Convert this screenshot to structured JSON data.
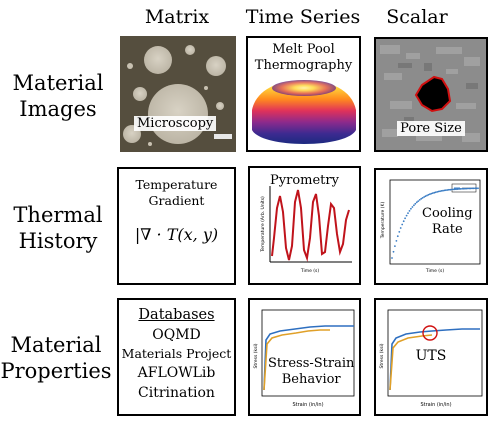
{
  "columns": [
    "Matrix",
    "Time Series",
    "Scalar"
  ],
  "rows": [
    {
      "line1": "Material",
      "line2": "Images"
    },
    {
      "line1": "Thermal",
      "line2": "History"
    },
    {
      "line1": "Material",
      "line2": "Properties"
    }
  ],
  "images": {
    "microscopy_label": "Microscopy",
    "thermography_line1": "Melt Pool",
    "thermography_line2": "Thermography",
    "pore_label": "Pore Size"
  },
  "thermal": {
    "gradient_line1": "Temperature",
    "gradient_line2": "Gradient",
    "gradient_formula": "|∇ · T(x, y)",
    "pyrometry_label": "Pyrometry",
    "pyrometry_ylabel": "Temperature (Arb. Units)",
    "pyrometry_xlabel": "Time (s)",
    "cooling_line1": "Cooling",
    "cooling_line2": "Rate",
    "cooling_ylabel": "Temperature (K)",
    "cooling_xlabel": "Time (s)"
  },
  "properties": {
    "databases_title": "Databases",
    "databases": [
      "OQMD",
      "Materials Project",
      "AFLOWLib",
      "Citrination"
    ],
    "stress_line1": "Stress-Strain",
    "stress_line2": "Behavior",
    "stress_xlabel": "Strain (in/in)",
    "stress_ylabel": "Stress (ksi)",
    "uts_label": "UTS",
    "uts_xlabel": "Strain (in/in)",
    "uts_ylabel": "Stress (ksi)"
  },
  "colors": {
    "pyrometry_line": "#c0131b",
    "cooling_points": "#3b7dc4",
    "curve_blue": "#2e6fc0",
    "curve_orange": "#e0a028",
    "uts_circle": "#d01010",
    "pore_outline": "#d01010"
  }
}
